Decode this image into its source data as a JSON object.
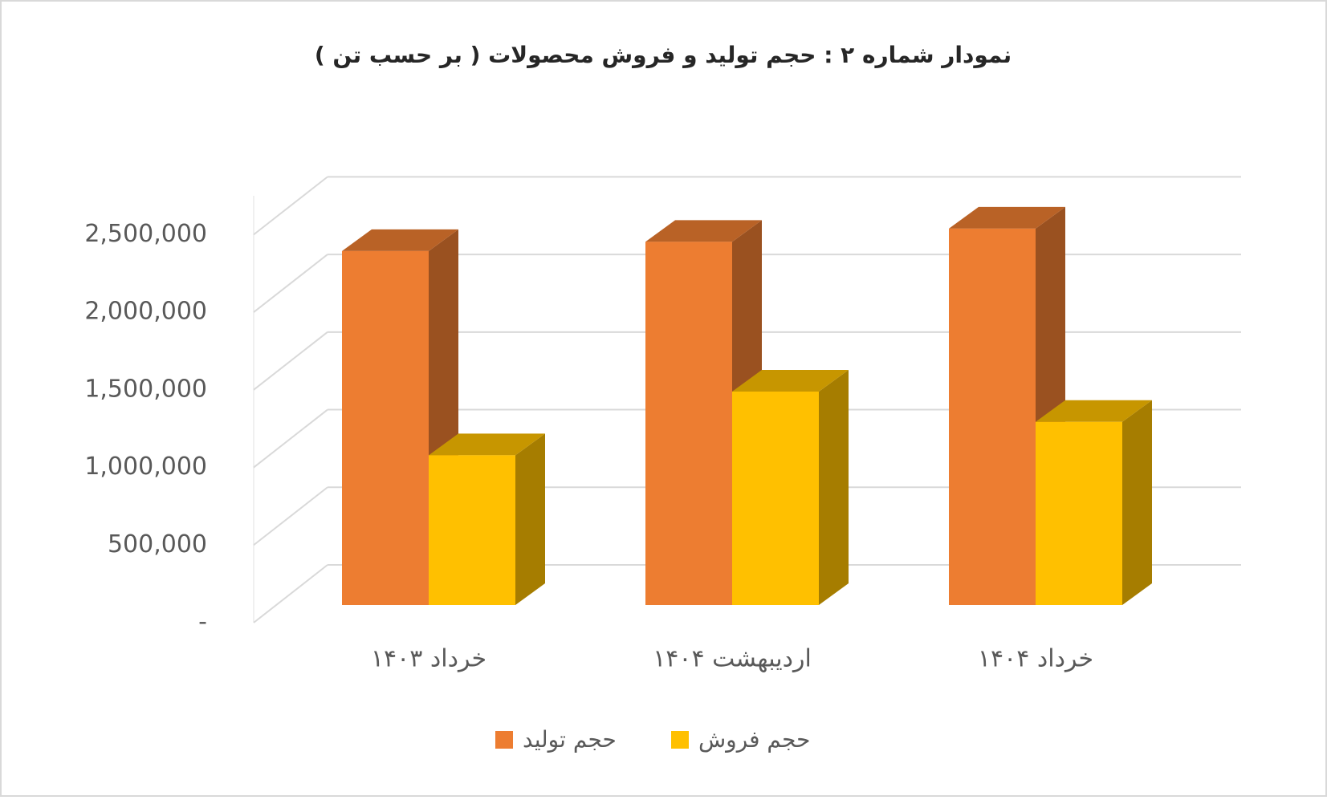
{
  "chart_data": {
    "type": "bar3d",
    "title": "نمودار شماره ۲ : حجم  تولید و فروش محصولات ( بر حسب تن )",
    "categories": [
      "خرداد ۱۴۰۳",
      "اردیبهشت ۱۴۰۴",
      "خرداد ۱۴۰۴"
    ],
    "series": [
      {
        "name": "حجم تولید",
        "color": "#ED7D31",
        "values": [
          2280000,
          2340000,
          2425000
        ]
      },
      {
        "name": "حجم فروش",
        "color": "#FFC000",
        "values": [
          965000,
          1375000,
          1180000
        ]
      }
    ],
    "ylim": [
      0,
      2750000
    ],
    "yticks": [
      {
        "value": 0,
        "label": "-"
      },
      {
        "value": 500000,
        "label": "500,000"
      },
      {
        "value": 1000000,
        "label": "1,000,000"
      },
      {
        "value": 1500000,
        "label": "1,500,000"
      },
      {
        "value": 2000000,
        "label": "2,000,000"
      },
      {
        "value": 2500000,
        "label": "2,500,000"
      }
    ],
    "grid": true,
    "legend": "bottom"
  }
}
